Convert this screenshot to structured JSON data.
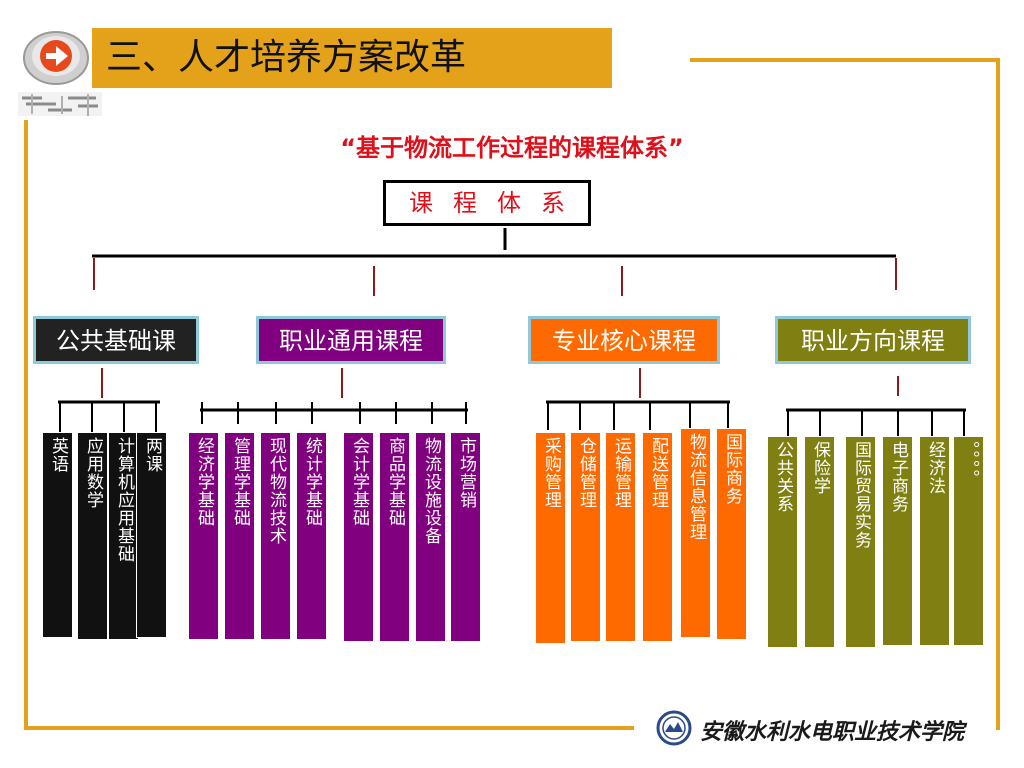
{
  "header": {
    "title": "三、人才培养方案改革"
  },
  "subtitle": "“基于物流工作过程的课程体系”",
  "root": "课程体系",
  "colors": {
    "accent": "#e3a21a",
    "red": "#e0101a",
    "black": "#111111",
    "purple": "#800080",
    "orange": "#ff6a00",
    "olive": "#7f7f12"
  },
  "categories": [
    {
      "label": "公共基础课",
      "color": "#222222",
      "courses": [
        "英语",
        "应用数学",
        "计算机应用基础",
        "两课"
      ]
    },
    {
      "label": "职业通用课程",
      "color": "#800080",
      "courses": [
        "经济学基础",
        "管理学基础",
        "现代物流技术",
        "统计学基础",
        "会计学基础",
        "商品学基础",
        "物流设施设备",
        "市场营销"
      ]
    },
    {
      "label": "专业核心课程",
      "color": "#ff6a00",
      "courses": [
        "采购管理",
        "仓储管理",
        "运输管理",
        "配送管理",
        "物流信息管理",
        "国际商务"
      ]
    },
    {
      "label": "职业方向课程",
      "color": "#7f7f12",
      "courses": [
        "公共关系",
        "保险学",
        "国际贸易实务",
        "电子商务",
        "经济法",
        "。。。。"
      ]
    }
  ],
  "footer": {
    "institution": "安徽水利水电职业技术学院"
  }
}
